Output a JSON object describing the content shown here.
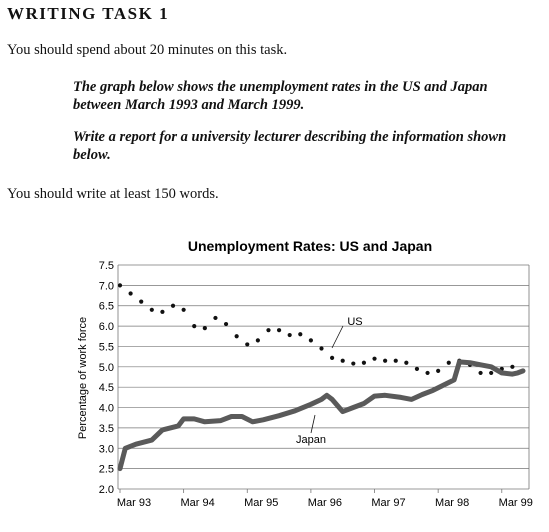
{
  "task": {
    "heading": "WRITING TASK 1",
    "instruction": "You should spend about 20 minutes on this task.",
    "prompt_1": "The graph below shows the unemployment rates in the US and Japan between March 1993 and March 1999.",
    "prompt_2": "Write a report for a university lecturer describing the information shown below.",
    "word_count": "You should write at least 150 words."
  },
  "chart_data": {
    "type": "line",
    "title": "Unemployment Rates: US and Japan",
    "ylabel": "Percentage of work force",
    "xlabel": "",
    "ylim": [
      2.0,
      7.5
    ],
    "yticks": [
      "2.0",
      "2.5",
      "3.0",
      "3.5",
      "4.0",
      "4.5",
      "5.0",
      "5.5",
      "6.0",
      "6.5",
      "7.0",
      "7.5"
    ],
    "xticks": [
      "Mar 93",
      "Mar 94",
      "Mar 95",
      "Mar 96",
      "Mar 97",
      "Mar 98",
      "Mar 99"
    ],
    "x_range_months": [
      0,
      76
    ],
    "grid": true,
    "series": [
      {
        "name": "US",
        "style": "dotted",
        "color": "#111111",
        "points": [
          [
            0,
            7.0
          ],
          [
            2,
            6.8
          ],
          [
            4,
            6.6
          ],
          [
            6,
            6.4
          ],
          [
            8,
            6.35
          ],
          [
            10,
            6.5
          ],
          [
            12,
            6.4
          ],
          [
            14,
            6.0
          ],
          [
            16,
            5.95
          ],
          [
            18,
            6.2
          ],
          [
            20,
            6.05
          ],
          [
            22,
            5.75
          ],
          [
            24,
            5.55
          ],
          [
            26,
            5.65
          ],
          [
            28,
            5.9
          ],
          [
            30,
            5.9
          ],
          [
            32,
            5.78
          ],
          [
            34,
            5.8
          ],
          [
            36,
            5.65
          ],
          [
            38,
            5.45
          ],
          [
            40,
            5.22
          ],
          [
            42,
            5.15
          ],
          [
            44,
            5.08
          ],
          [
            46,
            5.1
          ],
          [
            48,
            5.2
          ],
          [
            50,
            5.15
          ],
          [
            52,
            5.15
          ],
          [
            54,
            5.1
          ],
          [
            56,
            4.95
          ],
          [
            58,
            4.85
          ],
          [
            60,
            4.9
          ],
          [
            62,
            5.1
          ],
          [
            64,
            5.15
          ],
          [
            66,
            5.05
          ],
          [
            68,
            4.85
          ],
          [
            70,
            4.85
          ],
          [
            72,
            4.95
          ],
          [
            74,
            5.0
          ],
          [
            76,
            4.9
          ]
        ]
      },
      {
        "name": "Japan",
        "style": "thick",
        "color": "#5a5a5a",
        "points": [
          [
            0,
            2.5
          ],
          [
            1,
            3.0
          ],
          [
            3,
            3.1
          ],
          [
            6,
            3.2
          ],
          [
            8,
            3.45
          ],
          [
            11,
            3.55
          ],
          [
            12,
            3.72
          ],
          [
            14,
            3.72
          ],
          [
            16,
            3.65
          ],
          [
            19,
            3.68
          ],
          [
            21,
            3.78
          ],
          [
            23,
            3.78
          ],
          [
            25,
            3.65
          ],
          [
            27,
            3.7
          ],
          [
            30,
            3.8
          ],
          [
            33,
            3.92
          ],
          [
            36,
            4.08
          ],
          [
            38,
            4.2
          ],
          [
            39,
            4.3
          ],
          [
            40,
            4.2
          ],
          [
            42,
            3.9
          ],
          [
            44,
            4.0
          ],
          [
            46,
            4.1
          ],
          [
            48,
            4.28
          ],
          [
            50,
            4.3
          ],
          [
            53,
            4.25
          ],
          [
            55,
            4.2
          ],
          [
            57,
            4.32
          ],
          [
            59,
            4.42
          ],
          [
            61,
            4.55
          ],
          [
            63,
            4.68
          ],
          [
            64,
            5.12
          ],
          [
            66,
            5.1
          ],
          [
            68,
            5.05
          ],
          [
            70,
            5.0
          ],
          [
            72,
            4.85
          ],
          [
            74,
            4.82
          ],
          [
            75,
            4.85
          ],
          [
            76,
            4.9
          ]
        ]
      }
    ]
  }
}
